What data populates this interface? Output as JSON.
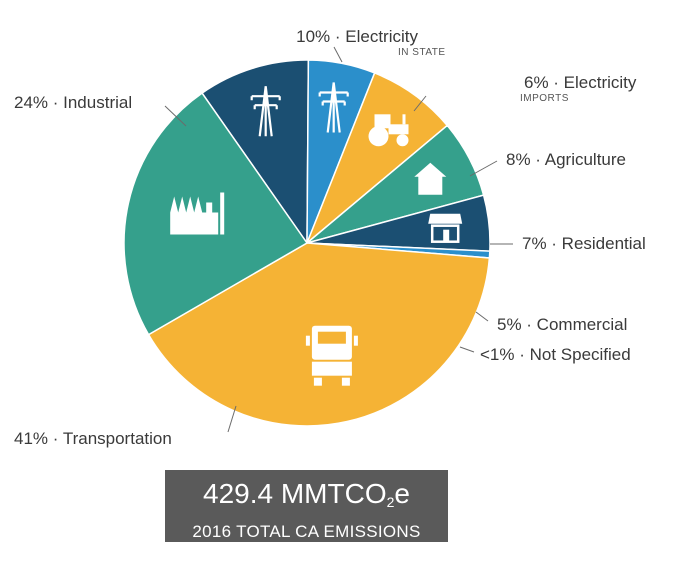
{
  "chart_data": {
    "type": "pie",
    "slices": [
      {
        "label": "Electricity",
        "sublabel": "IN STATE",
        "percent_text": "10%",
        "value": 10,
        "color": "#1b4f72",
        "icon": "power-tower-icon"
      },
      {
        "label": "Electricity",
        "sublabel": "IMPORTS",
        "percent_text": "6%",
        "value": 6,
        "color": "#2b8fcb",
        "icon": "power-tower-icon"
      },
      {
        "label": "Agriculture",
        "percent_text": "8%",
        "value": 8,
        "color": "#f5b335",
        "icon": "tractor-icon"
      },
      {
        "label": "Residential",
        "percent_text": "7%",
        "value": 7,
        "color": "#35a08c",
        "icon": "house-icon"
      },
      {
        "label": "Commercial",
        "percent_text": "5%",
        "value": 5,
        "color": "#1b4f72",
        "icon": "storefront-icon"
      },
      {
        "label": "Not Specified",
        "percent_text": "<1%",
        "value": 0.6,
        "color": "#2b8fcb",
        "icon": ""
      },
      {
        "label": "Transportation",
        "percent_text": "41%",
        "value": 41,
        "color": "#f5b335",
        "icon": "truck-icon"
      },
      {
        "label": "Industrial",
        "percent_text": "24%",
        "value": 24,
        "color": "#35a08c",
        "icon": "factory-icon"
      }
    ]
  },
  "total": {
    "value": "429.4 MMTCO",
    "subscript": "2",
    "suffix": "e",
    "caption": "2016 TOTAL CA EMISSIONS"
  }
}
